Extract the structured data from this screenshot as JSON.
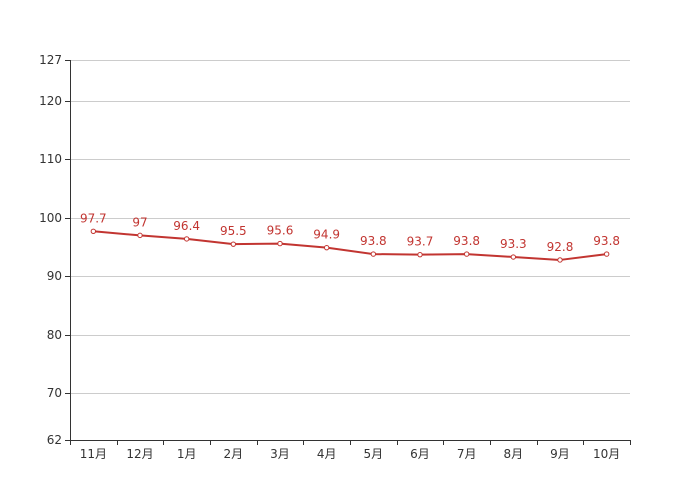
{
  "chart_data": {
    "type": "line",
    "categories": [
      "11月",
      "12月",
      "1月",
      "2月",
      "3月",
      "4月",
      "5月",
      "6月",
      "7月",
      "8月",
      "9月",
      "10月"
    ],
    "series": [
      {
        "values": [
          97.7,
          97,
          96.4,
          95.5,
          95.6,
          94.9,
          93.8,
          93.7,
          93.8,
          93.3,
          92.8,
          93.8
        ]
      }
    ],
    "ylim": [
      62,
      127
    ],
    "yticks": [
      62,
      70,
      80,
      90,
      100,
      110,
      120,
      127
    ],
    "grid": true,
    "data_labels": true,
    "title": "",
    "xlabel": "",
    "ylabel": "",
    "colors": {
      "line": "#c23531",
      "label": "#c23531",
      "grid": "#cccccc",
      "axis": "#333333",
      "marker_fill": "#ffffff"
    }
  }
}
